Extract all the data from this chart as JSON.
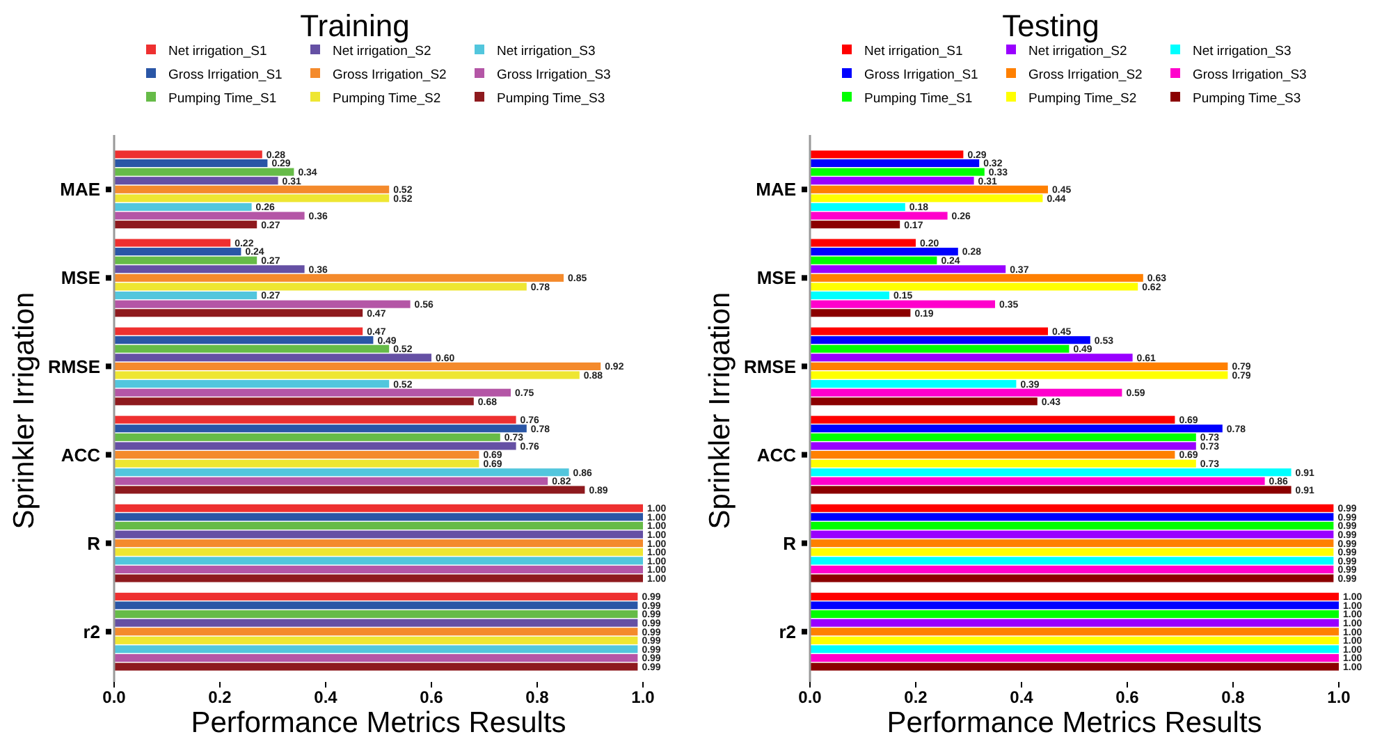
{
  "chart_data": [
    {
      "type": "bar",
      "orientation": "horizontal",
      "title": "Training",
      "xlabel": "Performance Metrics Results",
      "ylabel": "Sprinkler Irrigation",
      "categories": [
        "MAE",
        "MSE",
        "RMSE",
        "ACC",
        "R",
        "r2"
      ],
      "xlim": [
        0,
        1
      ],
      "xticks": [
        {
          "value": 0,
          "label": "0.0"
        },
        {
          "value": 0.2,
          "label": "0.2"
        },
        {
          "value": 0.4,
          "label": "0.4"
        },
        {
          "value": 0.6,
          "label": "0.6"
        },
        {
          "value": 0.8,
          "label": "0.8"
        },
        {
          "value": 1,
          "label": "1.0"
        }
      ],
      "legend": "top",
      "grid": false,
      "series": [
        {
          "name": "Net irrigation_S1",
          "color": "#ee3030",
          "values": [
            0.28,
            0.22,
            0.47,
            0.76,
            1.0,
            0.99
          ],
          "value_labels": [
            "0.28",
            "0.22",
            "0.47",
            "0.76",
            "1.00",
            "0.99"
          ]
        },
        {
          "name": "Gross Irrigation_S1",
          "color": "#2a56a6",
          "values": [
            0.29,
            0.24,
            0.49,
            0.78,
            1.0,
            0.99
          ],
          "value_labels": [
            "0.29",
            "0.24",
            "0.49",
            "0.78",
            "1.00",
            "0.99"
          ]
        },
        {
          "name": "Pumping Time_S1",
          "color": "#66bb48",
          "values": [
            0.34,
            0.27,
            0.52,
            0.73,
            1.0,
            0.99
          ],
          "value_labels": [
            "0.34",
            "0.27",
            "0.52",
            "0.73",
            "1.00",
            "0.99"
          ]
        },
        {
          "name": "Net irrigation_S2",
          "color": "#6550a4",
          "values": [
            0.31,
            0.36,
            0.6,
            0.76,
            1.0,
            0.99
          ],
          "value_labels": [
            "0.31",
            "0.36",
            "0.60",
            "0.76",
            "1.00",
            "0.99"
          ]
        },
        {
          "name": "Gross Irrigation_S2",
          "color": "#f48a2c",
          "values": [
            0.52,
            0.85,
            0.92,
            0.69,
            1.0,
            0.99
          ],
          "value_labels": [
            "0.52",
            "0.85",
            "0.92",
            "0.69",
            "1.00",
            "0.99"
          ]
        },
        {
          "name": "Pumping Time_S2",
          "color": "#eee632",
          "values": [
            0.52,
            0.78,
            0.88,
            0.69,
            1.0,
            0.99
          ],
          "value_labels": [
            "0.52",
            "0.78",
            "0.88",
            "0.69",
            "1.00",
            "0.99"
          ]
        },
        {
          "name": "Net irrigation_S3",
          "color": "#52c6dd",
          "values": [
            0.26,
            0.27,
            0.52,
            0.86,
            1.0,
            0.99
          ],
          "value_labels": [
            "0.26",
            "0.27",
            "0.52",
            "0.86",
            "1.00",
            "0.99"
          ]
        },
        {
          "name": "Gross Irrigation_S3",
          "color": "#b456a6",
          "values": [
            0.36,
            0.56,
            0.75,
            0.82,
            1.0,
            0.99
          ],
          "value_labels": [
            "0.36",
            "0.56",
            "0.75",
            "0.82",
            "1.00",
            "0.99"
          ]
        },
        {
          "name": "Pumping Time_S3",
          "color": "#8e1a1e",
          "values": [
            0.27,
            0.47,
            0.68,
            0.89,
            1.0,
            0.99
          ],
          "value_labels": [
            "0.27",
            "0.47",
            "0.68",
            "0.89",
            "1.00",
            "0.99"
          ]
        }
      ]
    },
    {
      "type": "bar",
      "orientation": "horizontal",
      "title": "Testing",
      "xlabel": "Performance Metrics Results",
      "ylabel": "Sprinkler Irrigation",
      "categories": [
        "MAE",
        "MSE",
        "RMSE",
        "ACC",
        "R",
        "r2"
      ],
      "xlim": [
        0,
        1
      ],
      "xticks": [
        {
          "value": 0,
          "label": "0.0"
        },
        {
          "value": 0.2,
          "label": "0.2"
        },
        {
          "value": 0.4,
          "label": "0.4"
        },
        {
          "value": 0.6,
          "label": "0.6"
        },
        {
          "value": 0.8,
          "label": "0.8"
        },
        {
          "value": 1,
          "label": "1.0"
        }
      ],
      "legend": "top",
      "grid": false,
      "series": [
        {
          "name": "Net irrigation_S1",
          "color": "#ff0000",
          "values": [
            0.29,
            0.2,
            0.45,
            0.69,
            0.99,
            1.0
          ],
          "value_labels": [
            "0.29",
            "0.20",
            "0.45",
            "0.69",
            "0.99",
            "1.00"
          ]
        },
        {
          "name": "Gross Irrigation_S1",
          "color": "#0000ff",
          "values": [
            0.32,
            0.28,
            0.53,
            0.78,
            0.99,
            1.0
          ],
          "value_labels": [
            "0.32",
            "0.28",
            "0.53",
            "0.78",
            "0.99",
            "1.00"
          ]
        },
        {
          "name": "Pumping Time_S1",
          "color": "#00ff00",
          "values": [
            0.33,
            0.24,
            0.49,
            0.73,
            0.99,
            1.0
          ],
          "value_labels": [
            "0.33",
            "0.24",
            "0.49",
            "0.73",
            "0.99",
            "1.00"
          ]
        },
        {
          "name": "Net irrigation_S2",
          "color": "#9900ff",
          "values": [
            0.31,
            0.37,
            0.61,
            0.73,
            0.99,
            1.0
          ],
          "value_labels": [
            "0.31",
            "0.37",
            "0.61",
            "0.73",
            "0.99",
            "1.00"
          ]
        },
        {
          "name": "Gross Irrigation_S2",
          "color": "#ff8000",
          "values": [
            0.45,
            0.63,
            0.79,
            0.69,
            0.99,
            1.0
          ],
          "value_labels": [
            "0.45",
            "0.63",
            "0.79",
            "0.69",
            "0.99",
            "1.00"
          ]
        },
        {
          "name": "Pumping Time_S2",
          "color": "#ffff00",
          "values": [
            0.44,
            0.62,
            0.79,
            0.73,
            0.99,
            1.0
          ],
          "value_labels": [
            "0.44",
            "0.62",
            "0.79",
            "0.73",
            "0.99",
            "1.00"
          ]
        },
        {
          "name": "Net irrigation_S3",
          "color": "#00ffff",
          "values": [
            0.18,
            0.15,
            0.39,
            0.91,
            0.99,
            1.0
          ],
          "value_labels": [
            "0.18",
            "0.15",
            "0.39",
            "0.91",
            "0.99",
            "1.00"
          ]
        },
        {
          "name": "Gross Irrigation_S3",
          "color": "#ff00cc",
          "values": [
            0.26,
            0.35,
            0.59,
            0.86,
            0.99,
            1.0
          ],
          "value_labels": [
            "0.26",
            "0.35",
            "0.59",
            "0.86",
            "0.99",
            "1.00"
          ]
        },
        {
          "name": "Pumping Time_S3",
          "color": "#8b0000",
          "values": [
            0.17,
            0.19,
            0.43,
            0.91,
            0.99,
            1.0
          ],
          "value_labels": [
            "0.17",
            "0.19",
            "0.43",
            "0.91",
            "0.99",
            "1.00"
          ]
        }
      ]
    }
  ]
}
